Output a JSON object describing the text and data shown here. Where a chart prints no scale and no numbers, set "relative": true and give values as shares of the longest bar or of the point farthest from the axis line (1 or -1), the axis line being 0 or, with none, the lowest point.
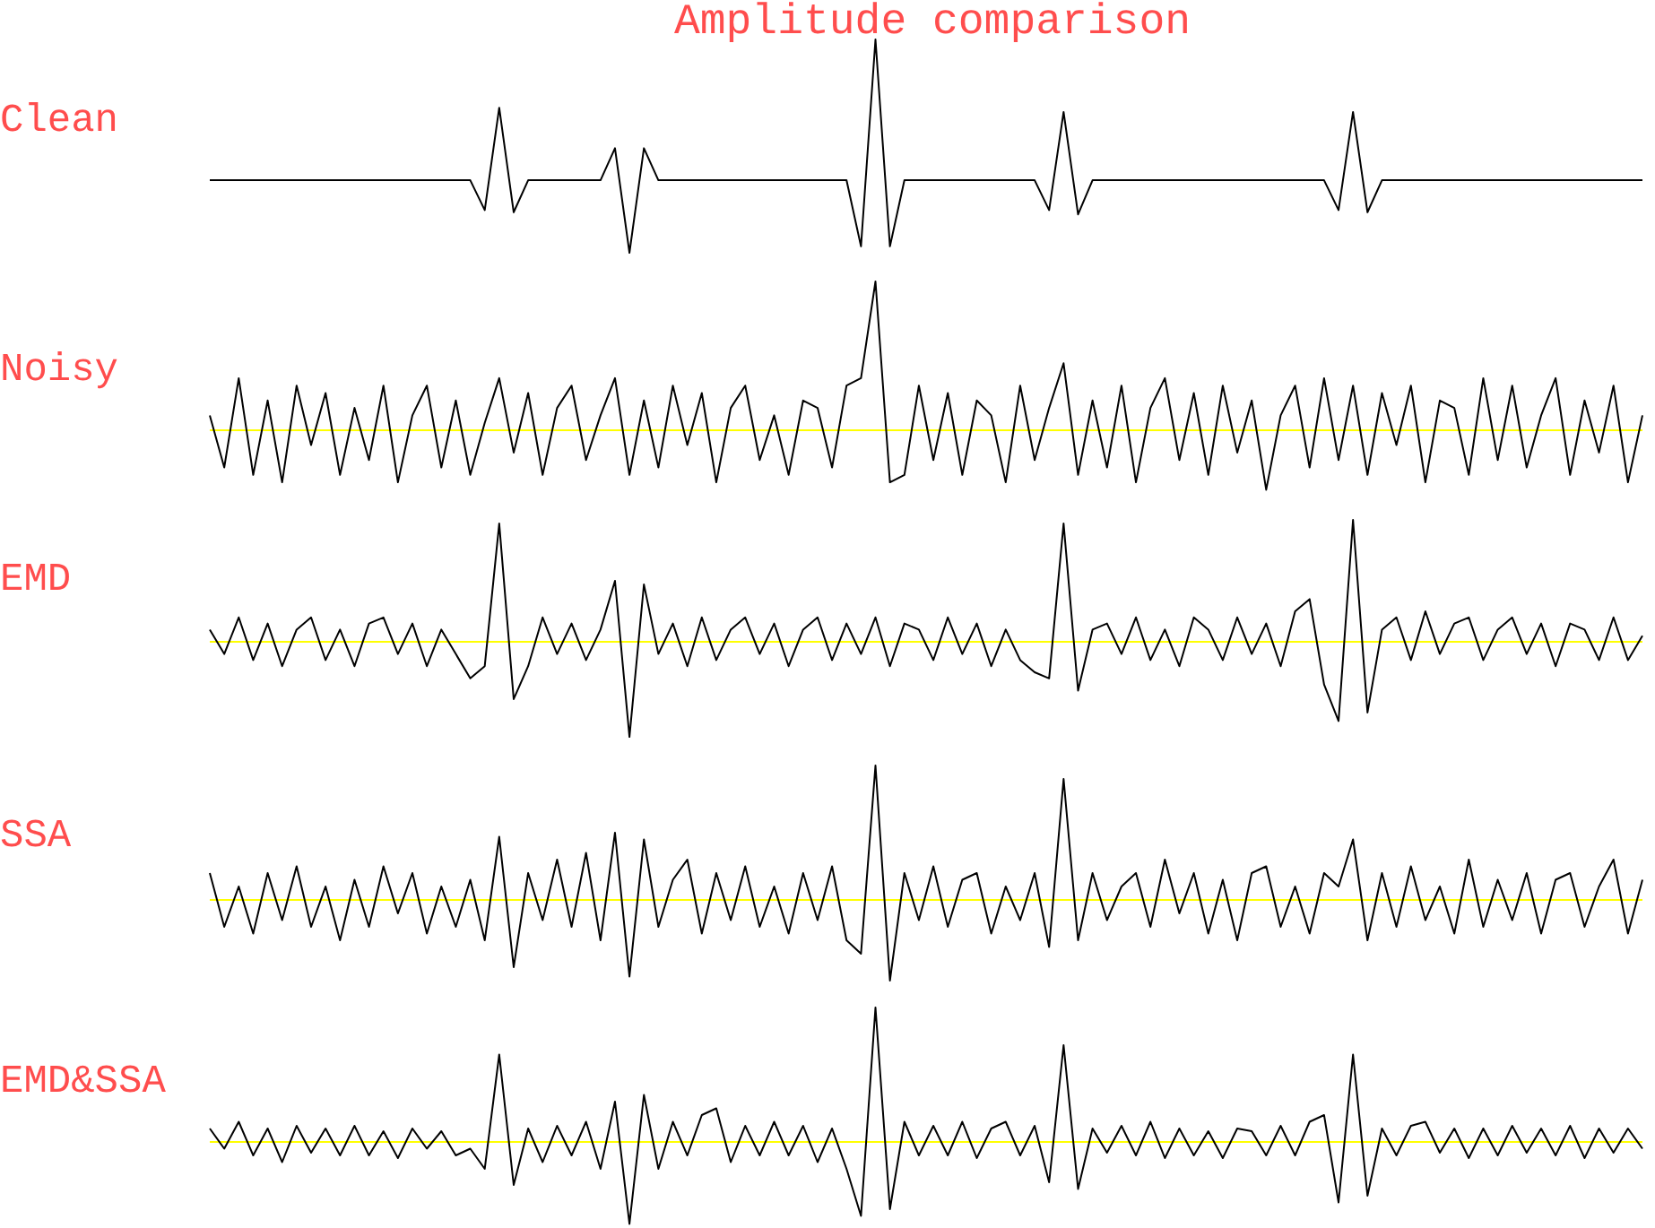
{
  "chart_data": [
    {
      "type": "line",
      "title": "Amplitude comparison",
      "relative": true,
      "categories": [
        null,
        null,
        null,
        null,
        null,
        null,
        null,
        null,
        null,
        null,
        null,
        null,
        null,
        null,
        null,
        null,
        null,
        null,
        null,
        null,
        null,
        null,
        null,
        null,
        null,
        null,
        null,
        null,
        null,
        null,
        null,
        null,
        null,
        null,
        null,
        null,
        null,
        null,
        null,
        null,
        null,
        null,
        null,
        null,
        null,
        null,
        null,
        null,
        null,
        null,
        null,
        null,
        null,
        null,
        null,
        null,
        null,
        null,
        null,
        null,
        null,
        null,
        null,
        null,
        null,
        null,
        null,
        null,
        null,
        null,
        null,
        null,
        null,
        null,
        null,
        null,
        null,
        null,
        null,
        null,
        null,
        null,
        null,
        null,
        null,
        null,
        null,
        null,
        null,
        null,
        null,
        null,
        null,
        null,
        null,
        null,
        null,
        null,
        null,
        null
      ],
      "series": [
        {
          "name": "Clean",
          "color": "#000000",
          "values": [
            0.34,
            0.34,
            0.34,
            0.34,
            0.34,
            0.34,
            0.34,
            0.34,
            0.34,
            0.34,
            0.34,
            0.34,
            0.34,
            0.34,
            0.34,
            0.34,
            0.34,
            0.34,
            0.34,
            0.2,
            0.68,
            0.19,
            0.34,
            0.34,
            0.34,
            0.34,
            0.34,
            0.34,
            0.49,
            0,
            0.49,
            0.34,
            0.34,
            0.34,
            0.34,
            0.34,
            0.34,
            0.34,
            0.34,
            0.34,
            0.34,
            0.34,
            0.34,
            0.34,
            0.34,
            0.03,
            1.0,
            0.03,
            0.34,
            0.34,
            0.34,
            0.34,
            0.34,
            0.34,
            0.34,
            0.34,
            0.34,
            0.34,
            0.2,
            0.66,
            0.18,
            0.34,
            0.34,
            0.34,
            0.34,
            0.34,
            0.34,
            0.34,
            0.34,
            0.34,
            0.34,
            0.34,
            0.34,
            0.34,
            0.34,
            0.34,
            0.34,
            0.34,
            0.2,
            0.66,
            0.19,
            0.34,
            0.34,
            0.34,
            0.34,
            0.34,
            0.34,
            0.34,
            0.34,
            0.34,
            0.34,
            0.34,
            0.34,
            0.34,
            0.34,
            0.34,
            0.34,
            0.34,
            0.34,
            0.34
          ]
        }
      ]
    },
    {
      "type": "line",
      "relative": true,
      "categories": [
        null,
        null,
        null,
        null,
        null,
        null,
        null,
        null,
        null,
        null,
        null,
        null,
        null,
        null,
        null,
        null,
        null,
        null,
        null,
        null,
        null,
        null,
        null,
        null,
        null,
        null,
        null,
        null,
        null,
        null,
        null,
        null,
        null,
        null,
        null,
        null,
        null,
        null,
        null,
        null,
        null,
        null,
        null,
        null,
        null,
        null,
        null,
        null,
        null,
        null,
        null,
        null,
        null,
        null,
        null,
        null,
        null,
        null,
        null,
        null,
        null,
        null,
        null,
        null,
        null,
        null,
        null,
        null,
        null,
        null,
        null,
        null,
        null,
        null,
        null,
        null,
        null,
        null,
        null,
        null,
        null,
        null,
        null,
        null,
        null,
        null,
        null,
        null,
        null,
        null,
        null,
        null,
        null,
        null,
        null,
        null,
        null,
        null,
        null,
        null
      ],
      "ref_lines": [
        {
          "axis": "y",
          "value": 0,
          "color": "#ffff00"
        }
      ],
      "series": [
        {
          "name": "Noisy",
          "color": "#000000",
          "values": [
            0.1,
            -0.25,
            0.35,
            -0.3,
            0.2,
            -0.35,
            0.3,
            -0.1,
            0.25,
            -0.3,
            0.15,
            -0.2,
            0.3,
            -0.35,
            0.1,
            0.3,
            -0.25,
            0.2,
            -0.3,
            0.05,
            0.35,
            -0.15,
            0.25,
            -0.3,
            0.15,
            0.3,
            -0.2,
            0.1,
            0.35,
            -0.3,
            0.2,
            -0.25,
            0.3,
            -0.1,
            0.25,
            -0.35,
            0.15,
            0.3,
            -0.2,
            0.1,
            -0.3,
            0.2,
            0.15,
            -0.25,
            0.3,
            0.35,
            1.0,
            -0.35,
            -0.3,
            0.3,
            -0.2,
            0.25,
            -0.3,
            0.2,
            0.1,
            -0.35,
            0.3,
            -0.2,
            0.15,
            0.45,
            -0.3,
            0.2,
            -0.25,
            0.3,
            -0.35,
            0.15,
            0.35,
            -0.2,
            0.25,
            -0.3,
            0.3,
            -0.15,
            0.2,
            -0.4,
            0.1,
            0.3,
            -0.25,
            0.35,
            -0.2,
            0.3,
            -0.3,
            0.25,
            -0.1,
            0.3,
            -0.35,
            0.2,
            0.15,
            -0.3,
            0.35,
            -0.2,
            0.3,
            -0.25,
            0.1,
            0.35,
            -0.3,
            0.2,
            -0.15,
            0.3,
            -0.35,
            0.1
          ]
        }
      ]
    },
    {
      "type": "line",
      "relative": true,
      "categories": [
        null,
        null,
        null,
        null,
        null,
        null,
        null,
        null,
        null,
        null,
        null,
        null,
        null,
        null,
        null,
        null,
        null,
        null,
        null,
        null,
        null,
        null,
        null,
        null,
        null,
        null,
        null,
        null,
        null,
        null,
        null,
        null,
        null,
        null,
        null,
        null,
        null,
        null,
        null,
        null,
        null,
        null,
        null,
        null,
        null,
        null,
        null,
        null,
        null,
        null,
        null,
        null,
        null,
        null,
        null,
        null,
        null,
        null,
        null,
        null,
        null,
        null,
        null,
        null,
        null,
        null,
        null,
        null,
        null,
        null,
        null,
        null,
        null,
        null,
        null,
        null,
        null,
        null,
        null,
        null,
        null,
        null,
        null,
        null,
        null,
        null,
        null,
        null,
        null,
        null,
        null,
        null,
        null,
        null,
        null,
        null,
        null,
        null,
        null,
        null
      ],
      "ref_lines": [
        {
          "axis": "y",
          "value": 0,
          "color": "#ffff00"
        }
      ],
      "series": [
        {
          "name": "EMD",
          "color": "#000000",
          "values": [
            0.1,
            -0.1,
            0.2,
            -0.15,
            0.15,
            -0.2,
            0.1,
            0.2,
            -0.15,
            0.1,
            -0.2,
            0.15,
            0.2,
            -0.1,
            0.15,
            -0.2,
            0.1,
            -0.1,
            -0.3,
            -0.2,
            0.97,
            -0.47,
            -0.2,
            0.2,
            -0.1,
            0.15,
            -0.15,
            0.1,
            0.5,
            -0.78,
            0.47,
            -0.1,
            0.15,
            -0.2,
            0.2,
            -0.15,
            0.1,
            0.2,
            -0.1,
            0.15,
            -0.2,
            0.1,
            0.2,
            -0.15,
            0.15,
            -0.1,
            0.2,
            -0.2,
            0.15,
            0.1,
            -0.15,
            0.2,
            -0.1,
            0.15,
            -0.2,
            0.1,
            -0.15,
            -0.25,
            -0.3,
            0.97,
            -0.4,
            0.1,
            0.15,
            -0.1,
            0.2,
            -0.15,
            0.1,
            -0.2,
            0.2,
            0.1,
            -0.15,
            0.2,
            -0.1,
            0.15,
            -0.2,
            0.25,
            0.35,
            -0.35,
            -0.65,
            1.0,
            -0.58,
            0.1,
            0.2,
            -0.15,
            0.25,
            -0.1,
            0.15,
            0.2,
            -0.15,
            0.1,
            0.2,
            -0.1,
            0.15,
            -0.2,
            0.15,
            0.1,
            -0.15,
            0.2,
            -0.15,
            0.05
          ]
        }
      ]
    },
    {
      "type": "line",
      "relative": true,
      "categories": [
        null,
        null,
        null,
        null,
        null,
        null,
        null,
        null,
        null,
        null,
        null,
        null,
        null,
        null,
        null,
        null,
        null,
        null,
        null,
        null,
        null,
        null,
        null,
        null,
        null,
        null,
        null,
        null,
        null,
        null,
        null,
        null,
        null,
        null,
        null,
        null,
        null,
        null,
        null,
        null,
        null,
        null,
        null,
        null,
        null,
        null,
        null,
        null,
        null,
        null,
        null,
        null,
        null,
        null,
        null,
        null,
        null,
        null,
        null,
        null,
        null,
        null,
        null,
        null,
        null,
        null,
        null,
        null,
        null,
        null,
        null,
        null,
        null,
        null,
        null,
        null,
        null,
        null,
        null,
        null,
        null,
        null,
        null,
        null,
        null,
        null,
        null,
        null,
        null,
        null,
        null,
        null,
        null,
        null,
        null,
        null,
        null,
        null,
        null,
        null
      ],
      "ref_lines": [
        {
          "axis": "y",
          "value": 0,
          "color": "#ffff00"
        }
      ],
      "series": [
        {
          "name": "SSA",
          "color": "#000000",
          "values": [
            0.2,
            -0.2,
            0.1,
            -0.25,
            0.2,
            -0.15,
            0.25,
            -0.2,
            0.1,
            -0.3,
            0.15,
            -0.2,
            0.25,
            -0.1,
            0.2,
            -0.25,
            0.1,
            -0.2,
            0.15,
            -0.3,
            0.47,
            -0.5,
            0.2,
            -0.15,
            0.3,
            -0.2,
            0.35,
            -0.3,
            0.5,
            -0.57,
            0.45,
            -0.2,
            0.15,
            0.3,
            -0.25,
            0.2,
            -0.15,
            0.25,
            -0.2,
            0.1,
            -0.25,
            0.2,
            -0.15,
            0.25,
            -0.3,
            -0.4,
            1.0,
            -0.6,
            0.2,
            -0.15,
            0.25,
            -0.2,
            0.15,
            0.2,
            -0.25,
            0.1,
            -0.15,
            0.2,
            -0.35,
            0.9,
            -0.3,
            0.2,
            -0.15,
            0.1,
            0.2,
            -0.2,
            0.3,
            -0.1,
            0.2,
            -0.25,
            0.15,
            -0.3,
            0.2,
            0.25,
            -0.2,
            0.1,
            -0.25,
            0.2,
            0.1,
            0.45,
            -0.3,
            0.2,
            -0.2,
            0.25,
            -0.15,
            0.1,
            -0.25,
            0.3,
            -0.2,
            0.15,
            -0.15,
            0.2,
            -0.25,
            0.15,
            0.2,
            -0.2,
            0.1,
            0.3,
            -0.25,
            0.15
          ]
        }
      ]
    },
    {
      "type": "line",
      "relative": true,
      "categories": [
        null,
        null,
        null,
        null,
        null,
        null,
        null,
        null,
        null,
        null,
        null,
        null,
        null,
        null,
        null,
        null,
        null,
        null,
        null,
        null,
        null,
        null,
        null,
        null,
        null,
        null,
        null,
        null,
        null,
        null,
        null,
        null,
        null,
        null,
        null,
        null,
        null,
        null,
        null,
        null,
        null,
        null,
        null,
        null,
        null,
        null,
        null,
        null,
        null,
        null,
        null,
        null,
        null,
        null,
        null,
        null,
        null,
        null,
        null,
        null,
        null,
        null,
        null,
        null,
        null,
        null,
        null,
        null,
        null,
        null,
        null,
        null,
        null,
        null,
        null,
        null,
        null,
        null,
        null,
        null,
        null,
        null,
        null,
        null,
        null,
        null,
        null,
        null,
        null,
        null,
        null,
        null,
        null,
        null,
        null,
        null,
        null,
        null,
        null,
        null
      ],
      "ref_lines": [
        {
          "axis": "y",
          "value": 0,
          "color": "#ffff00"
        }
      ],
      "series": [
        {
          "name": "EMD&SSA",
          "color": "#000000",
          "values": [
            0.1,
            -0.05,
            0.15,
            -0.1,
            0.1,
            -0.15,
            0.12,
            -0.08,
            0.1,
            -0.1,
            0.12,
            -0.1,
            0.08,
            -0.12,
            0.1,
            -0.05,
            0.08,
            -0.1,
            -0.05,
            -0.2,
            0.65,
            -0.32,
            0.1,
            -0.15,
            0.12,
            -0.1,
            0.15,
            -0.2,
            0.3,
            -0.61,
            0.35,
            -0.2,
            0.15,
            -0.1,
            0.2,
            0.25,
            -0.15,
            0.12,
            -0.1,
            0.15,
            -0.1,
            0.12,
            -0.15,
            0.1,
            -0.2,
            -0.55,
            1.0,
            -0.5,
            0.15,
            -0.1,
            0.12,
            -0.1,
            0.15,
            -0.12,
            0.1,
            0.15,
            -0.1,
            0.12,
            -0.3,
            0.72,
            -0.35,
            0.1,
            -0.08,
            0.12,
            -0.1,
            0.15,
            -0.12,
            0.1,
            -0.1,
            0.08,
            -0.12,
            0.1,
            0.08,
            -0.1,
            0.12,
            -0.1,
            0.15,
            0.2,
            -0.45,
            0.65,
            -0.4,
            0.1,
            -0.1,
            0.12,
            0.15,
            -0.08,
            0.1,
            -0.12,
            0.1,
            -0.1,
            0.12,
            -0.08,
            0.1,
            -0.1,
            0.12,
            -0.12,
            0.1,
            -0.08,
            0.1,
            -0.05
          ]
        }
      ]
    }
  ]
}
